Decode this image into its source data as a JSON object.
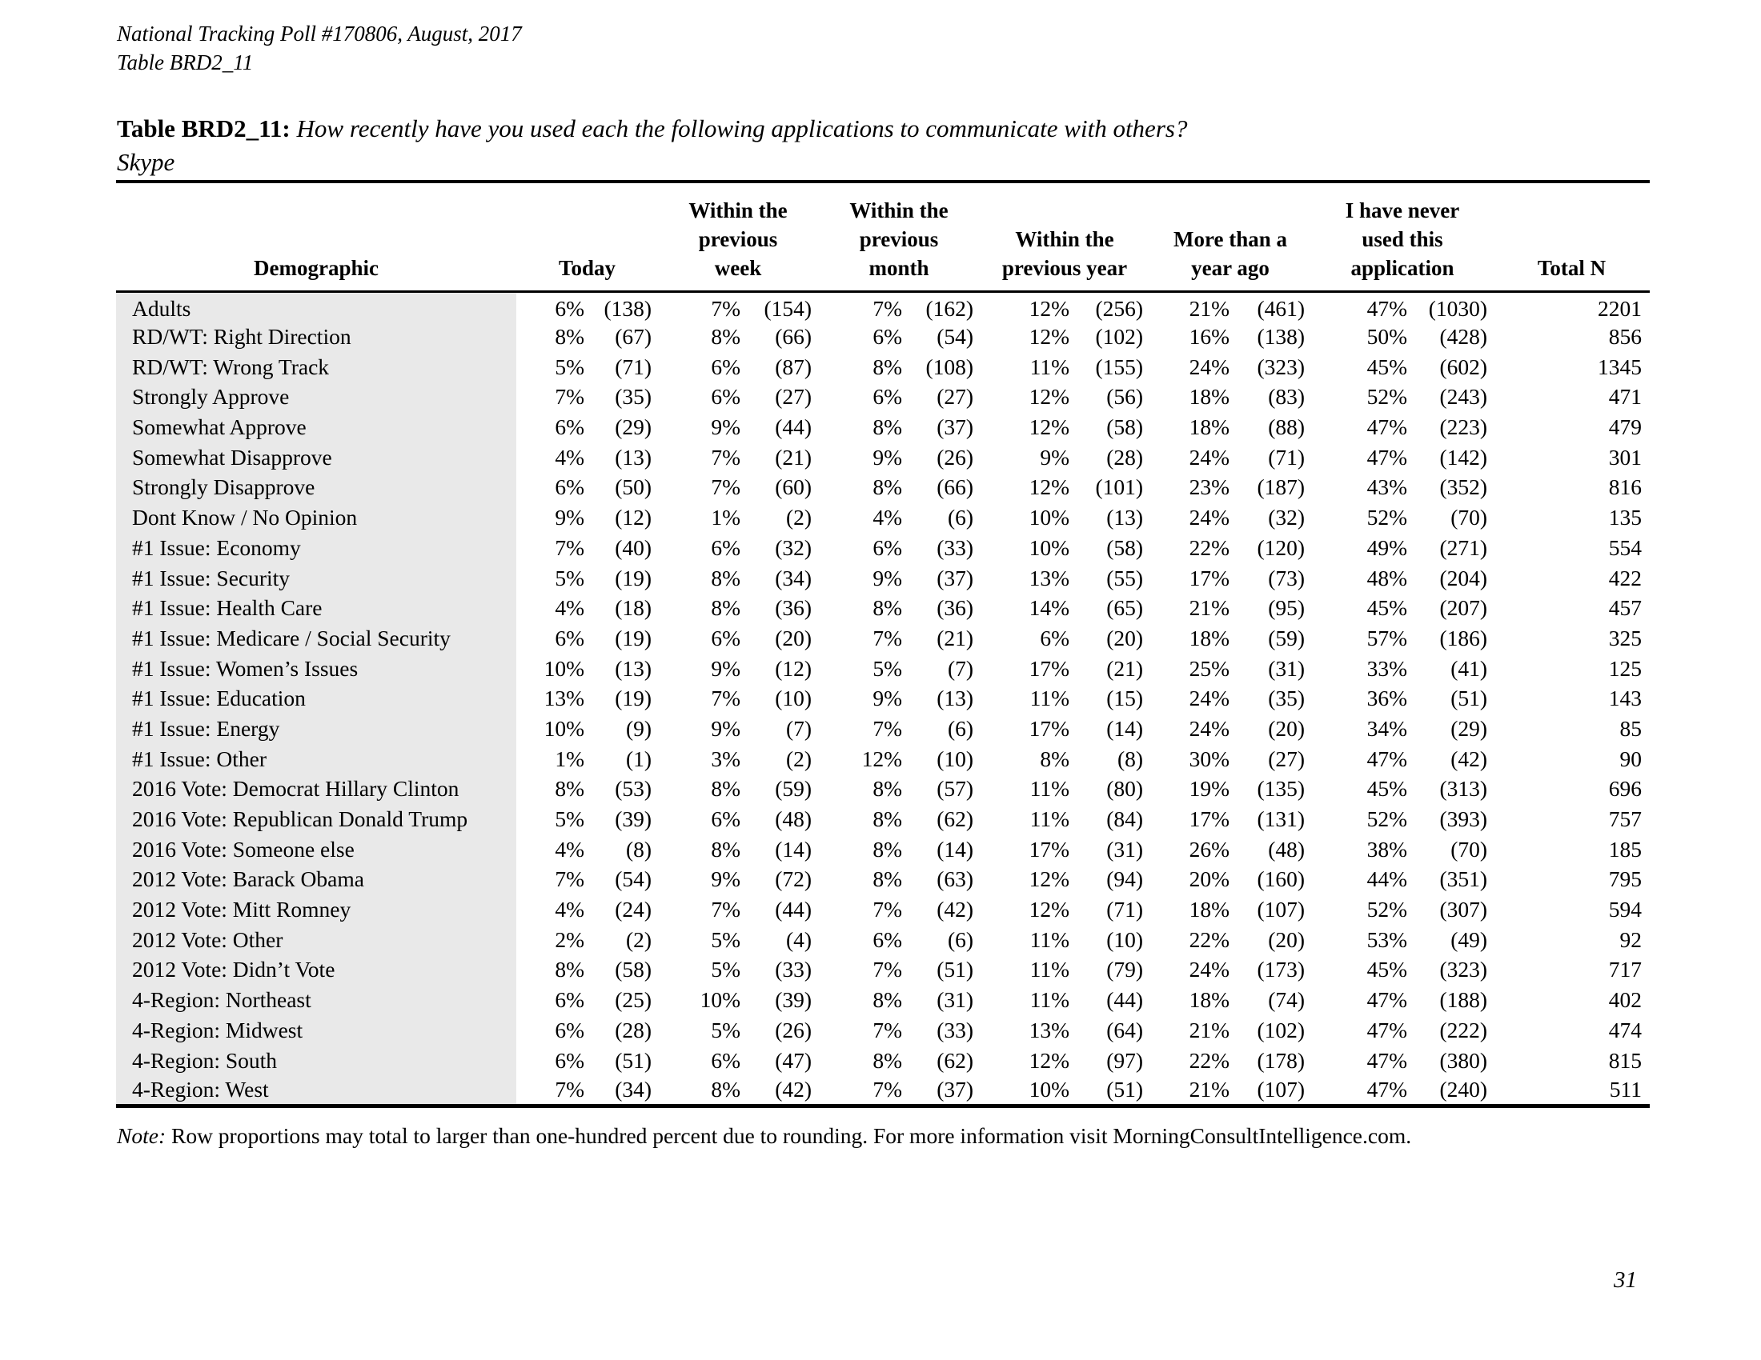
{
  "page": {
    "header_line1": "National Tracking Poll #170806, August, 2017",
    "header_line2": "Table BRD2_11",
    "page_number": "31"
  },
  "title": {
    "label": "Table BRD2_11:",
    "question": "How recently have you used each the following applications to communicate with others?",
    "subject": "Skype"
  },
  "table": {
    "headers": {
      "demographic": "Demographic",
      "today": "Today",
      "week": [
        "Within the",
        "previous",
        "week"
      ],
      "month": [
        "Within the",
        "previous",
        "month"
      ],
      "year": [
        "Within the",
        "previous year"
      ],
      "more": [
        "More than a",
        "year ago"
      ],
      "never": [
        "I have never",
        "used this",
        "application"
      ],
      "total": "Total N"
    },
    "rows": [
      {
        "label": "Adults",
        "values": [
          "6%",
          "(138)",
          "7%",
          "(154)",
          "7%",
          "(162)",
          "12%",
          "(256)",
          "21%",
          "(461)",
          "47%",
          "(1030)",
          "2201"
        ]
      },
      {
        "label": "RD/WT: Right Direction",
        "values": [
          "8%",
          "(67)",
          "8%",
          "(66)",
          "6%",
          "(54)",
          "12%",
          "(102)",
          "16%",
          "(138)",
          "50%",
          "(428)",
          "856"
        ]
      },
      {
        "label": "RD/WT: Wrong Track",
        "values": [
          "5%",
          "(71)",
          "6%",
          "(87)",
          "8%",
          "(108)",
          "11%",
          "(155)",
          "24%",
          "(323)",
          "45%",
          "(602)",
          "1345"
        ]
      },
      {
        "label": "Strongly Approve",
        "values": [
          "7%",
          "(35)",
          "6%",
          "(27)",
          "6%",
          "(27)",
          "12%",
          "(56)",
          "18%",
          "(83)",
          "52%",
          "(243)",
          "471"
        ]
      },
      {
        "label": "Somewhat Approve",
        "values": [
          "6%",
          "(29)",
          "9%",
          "(44)",
          "8%",
          "(37)",
          "12%",
          "(58)",
          "18%",
          "(88)",
          "47%",
          "(223)",
          "479"
        ]
      },
      {
        "label": "Somewhat Disapprove",
        "values": [
          "4%",
          "(13)",
          "7%",
          "(21)",
          "9%",
          "(26)",
          "9%",
          "(28)",
          "24%",
          "(71)",
          "47%",
          "(142)",
          "301"
        ]
      },
      {
        "label": "Strongly Disapprove",
        "values": [
          "6%",
          "(50)",
          "7%",
          "(60)",
          "8%",
          "(66)",
          "12%",
          "(101)",
          "23%",
          "(187)",
          "43%",
          "(352)",
          "816"
        ]
      },
      {
        "label": "Dont Know / No Opinion",
        "values": [
          "9%",
          "(12)",
          "1%",
          "(2)",
          "4%",
          "(6)",
          "10%",
          "(13)",
          "24%",
          "(32)",
          "52%",
          "(70)",
          "135"
        ]
      },
      {
        "label": "#1 Issue: Economy",
        "values": [
          "7%",
          "(40)",
          "6%",
          "(32)",
          "6%",
          "(33)",
          "10%",
          "(58)",
          "22%",
          "(120)",
          "49%",
          "(271)",
          "554"
        ]
      },
      {
        "label": "#1 Issue: Security",
        "values": [
          "5%",
          "(19)",
          "8%",
          "(34)",
          "9%",
          "(37)",
          "13%",
          "(55)",
          "17%",
          "(73)",
          "48%",
          "(204)",
          "422"
        ]
      },
      {
        "label": "#1 Issue: Health Care",
        "values": [
          "4%",
          "(18)",
          "8%",
          "(36)",
          "8%",
          "(36)",
          "14%",
          "(65)",
          "21%",
          "(95)",
          "45%",
          "(207)",
          "457"
        ]
      },
      {
        "label": "#1 Issue: Medicare / Social Security",
        "values": [
          "6%",
          "(19)",
          "6%",
          "(20)",
          "7%",
          "(21)",
          "6%",
          "(20)",
          "18%",
          "(59)",
          "57%",
          "(186)",
          "325"
        ]
      },
      {
        "label": "#1 Issue: Women’s Issues",
        "values": [
          "10%",
          "(13)",
          "9%",
          "(12)",
          "5%",
          "(7)",
          "17%",
          "(21)",
          "25%",
          "(31)",
          "33%",
          "(41)",
          "125"
        ]
      },
      {
        "label": "#1 Issue: Education",
        "values": [
          "13%",
          "(19)",
          "7%",
          "(10)",
          "9%",
          "(13)",
          "11%",
          "(15)",
          "24%",
          "(35)",
          "36%",
          "(51)",
          "143"
        ]
      },
      {
        "label": "#1 Issue: Energy",
        "values": [
          "10%",
          "(9)",
          "9%",
          "(7)",
          "7%",
          "(6)",
          "17%",
          "(14)",
          "24%",
          "(20)",
          "34%",
          "(29)",
          "85"
        ]
      },
      {
        "label": "#1 Issue: Other",
        "values": [
          "1%",
          "(1)",
          "3%",
          "(2)",
          "12%",
          "(10)",
          "8%",
          "(8)",
          "30%",
          "(27)",
          "47%",
          "(42)",
          "90"
        ]
      },
      {
        "label": "2016 Vote: Democrat Hillary Clinton",
        "values": [
          "8%",
          "(53)",
          "8%",
          "(59)",
          "8%",
          "(57)",
          "11%",
          "(80)",
          "19%",
          "(135)",
          "45%",
          "(313)",
          "696"
        ]
      },
      {
        "label": "2016 Vote: Republican Donald Trump",
        "values": [
          "5%",
          "(39)",
          "6%",
          "(48)",
          "8%",
          "(62)",
          "11%",
          "(84)",
          "17%",
          "(131)",
          "52%",
          "(393)",
          "757"
        ]
      },
      {
        "label": "2016 Vote: Someone else",
        "values": [
          "4%",
          "(8)",
          "8%",
          "(14)",
          "8%",
          "(14)",
          "17%",
          "(31)",
          "26%",
          "(48)",
          "38%",
          "(70)",
          "185"
        ]
      },
      {
        "label": "2012 Vote: Barack Obama",
        "values": [
          "7%",
          "(54)",
          "9%",
          "(72)",
          "8%",
          "(63)",
          "12%",
          "(94)",
          "20%",
          "(160)",
          "44%",
          "(351)",
          "795"
        ]
      },
      {
        "label": "2012 Vote: Mitt Romney",
        "values": [
          "4%",
          "(24)",
          "7%",
          "(44)",
          "7%",
          "(42)",
          "12%",
          "(71)",
          "18%",
          "(107)",
          "52%",
          "(307)",
          "594"
        ]
      },
      {
        "label": "2012 Vote: Other",
        "values": [
          "2%",
          "(2)",
          "5%",
          "(4)",
          "6%",
          "(6)",
          "11%",
          "(10)",
          "22%",
          "(20)",
          "53%",
          "(49)",
          "92"
        ]
      },
      {
        "label": "2012 Vote: Didn’t Vote",
        "values": [
          "8%",
          "(58)",
          "5%",
          "(33)",
          "7%",
          "(51)",
          "11%",
          "(79)",
          "24%",
          "(173)",
          "45%",
          "(323)",
          "717"
        ]
      },
      {
        "label": "4-Region: Northeast",
        "values": [
          "6%",
          "(25)",
          "10%",
          "(39)",
          "8%",
          "(31)",
          "11%",
          "(44)",
          "18%",
          "(74)",
          "47%",
          "(188)",
          "402"
        ]
      },
      {
        "label": "4-Region: Midwest",
        "values": [
          "6%",
          "(28)",
          "5%",
          "(26)",
          "7%",
          "(33)",
          "13%",
          "(64)",
          "21%",
          "(102)",
          "47%",
          "(222)",
          "474"
        ]
      },
      {
        "label": "4-Region: South",
        "values": [
          "6%",
          "(51)",
          "6%",
          "(47)",
          "8%",
          "(62)",
          "12%",
          "(97)",
          "22%",
          "(178)",
          "47%",
          "(380)",
          "815"
        ]
      },
      {
        "label": "4-Region: West",
        "values": [
          "7%",
          "(34)",
          "8%",
          "(42)",
          "7%",
          "(37)",
          "10%",
          "(51)",
          "21%",
          "(107)",
          "47%",
          "(240)",
          "511"
        ]
      }
    ]
  },
  "note": {
    "label": "Note:",
    "text": " Row proportions may total to larger than one-hundred percent due to rounding. For more information visit MorningConsultIntelligence.com."
  }
}
